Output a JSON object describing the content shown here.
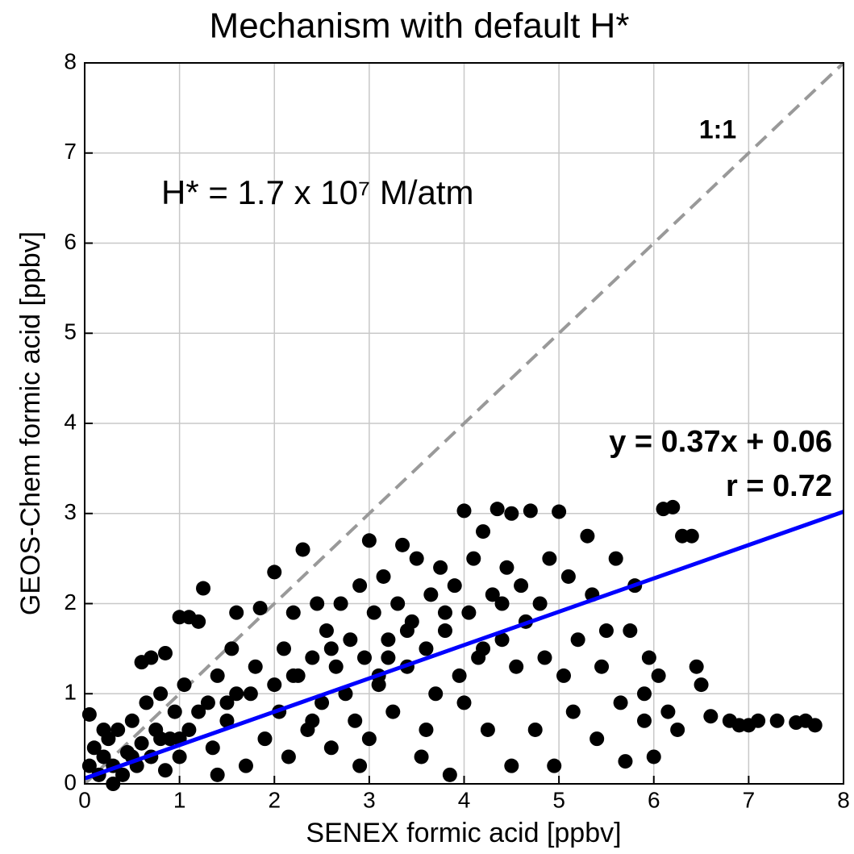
{
  "chart_data": {
    "type": "scatter",
    "title": "Mechanism with default H*",
    "x_label": "SENEX formic acid [ppbv]",
    "y_label": "GEOS-Chem formic acid [ppbv]",
    "annotation": "H* = 1.7 x 10⁷ M/atm",
    "xlim": [
      0,
      8
    ],
    "ylim": [
      0,
      8
    ],
    "xticks": [
      0,
      1,
      2,
      3,
      4,
      5,
      6,
      7,
      8
    ],
    "yticks": [
      0,
      1,
      2,
      3,
      4,
      5,
      6,
      7,
      8
    ],
    "grid": true,
    "reference_line": {
      "label": "1:1",
      "color": "#999999"
    },
    "fit": {
      "slope": 0.37,
      "intercept": 0.06,
      "label": "y = 0.37x + 0.06",
      "r_label": "r = 0.72",
      "color": "#0000ff"
    },
    "series": [
      {
        "color": "#000000",
        "x": [
          0.05,
          0.1,
          0.15,
          0.2,
          0.05,
          0.25,
          0.3,
          0.35,
          0.4,
          0.45,
          0.5,
          0.55,
          0.6,
          0.65,
          0.7,
          0.75,
          0.8,
          0.85,
          0.9,
          0.95,
          1.0,
          1.05,
          1.1,
          0.6,
          0.7,
          0.85,
          1.0,
          1.1,
          1.2,
          1.25,
          1.3,
          1.35,
          1.4,
          1.5,
          1.55,
          1.6,
          1.7,
          1.75,
          1.8,
          1.85,
          1.9,
          2.0,
          2.0,
          2.05,
          2.1,
          2.15,
          2.2,
          2.25,
          2.3,
          2.35,
          2.4,
          2.45,
          2.5,
          2.55,
          2.6,
          2.65,
          2.7,
          2.75,
          2.8,
          2.85,
          2.9,
          2.95,
          3.0,
          3.0,
          3.05,
          3.1,
          3.15,
          3.2,
          3.25,
          3.3,
          3.35,
          3.4,
          3.45,
          3.5,
          3.55,
          3.6,
          3.65,
          3.7,
          3.75,
          3.8,
          3.85,
          3.9,
          3.95,
          4.0,
          4.05,
          4.1,
          4.15,
          4.2,
          4.25,
          4.3,
          4.35,
          4.4,
          4.45,
          4.5,
          4.5,
          4.55,
          4.6,
          4.65,
          4.7,
          4.75,
          4.8,
          4.85,
          4.9,
          4.95,
          5.0,
          5.05,
          5.1,
          5.15,
          5.2,
          5.3,
          5.35,
          5.4,
          5.45,
          5.5,
          5.6,
          5.65,
          5.7,
          5.75,
          5.8,
          5.9,
          5.95,
          6.0,
          6.05,
          6.1,
          6.15,
          6.2,
          6.25,
          6.3,
          6.4,
          6.45,
          6.5,
          6.6,
          6.8,
          6.9,
          7.0,
          7.1,
          7.3,
          7.5,
          7.6,
          7.7,
          5.9,
          4.0,
          3.6,
          2.9,
          1.4,
          0.3,
          0.2,
          0.5,
          0.8,
          1.2,
          1.6,
          2.2,
          2.6,
          3.2,
          3.4,
          3.8,
          4.2,
          4.4,
          1.0,
          1.5,
          2.4,
          3.1
        ],
        "y": [
          0.2,
          0.4,
          0.1,
          0.3,
          0.77,
          0.5,
          0.2,
          0.6,
          0.1,
          0.35,
          0.7,
          0.2,
          0.45,
          0.9,
          0.3,
          0.6,
          1.0,
          0.15,
          0.5,
          0.8,
          0.3,
          1.1,
          0.6,
          1.35,
          1.4,
          1.45,
          1.85,
          1.85,
          1.8,
          2.17,
          0.9,
          0.4,
          1.2,
          0.7,
          1.5,
          1.9,
          0.2,
          1.0,
          1.3,
          1.95,
          0.5,
          2.35,
          1.1,
          0.8,
          1.5,
          0.3,
          1.9,
          1.2,
          2.6,
          0.6,
          1.4,
          2.0,
          0.9,
          1.7,
          0.4,
          1.3,
          2.0,
          1.0,
          1.6,
          0.7,
          2.2,
          1.4,
          2.7,
          0.5,
          1.9,
          1.1,
          2.3,
          1.6,
          0.8,
          2.0,
          2.65,
          1.3,
          1.8,
          2.5,
          0.3,
          1.5,
          2.1,
          1.0,
          2.4,
          1.7,
          0.1,
          2.2,
          1.2,
          3.03,
          1.9,
          2.5,
          1.4,
          2.8,
          0.6,
          2.1,
          3.05,
          1.6,
          2.4,
          0.2,
          3.0,
          1.3,
          2.2,
          1.8,
          3.03,
          0.6,
          2.0,
          1.4,
          2.5,
          0.2,
          3.02,
          1.2,
          2.3,
          0.8,
          1.6,
          2.75,
          2.1,
          0.5,
          1.3,
          1.7,
          2.5,
          0.9,
          0.25,
          1.7,
          2.2,
          0.7,
          1.4,
          0.3,
          1.2,
          3.05,
          0.8,
          3.07,
          0.6,
          2.75,
          2.75,
          1.3,
          1.1,
          0.75,
          0.7,
          0.65,
          0.65,
          0.7,
          0.7,
          0.68,
          0.7,
          0.65,
          1.0,
          0.9,
          0.6,
          0.2,
          0.1,
          0.0,
          0.6,
          0.3,
          0.5,
          0.8,
          1.0,
          1.2,
          1.5,
          1.4,
          1.7,
          1.9,
          1.5,
          2.0,
          0.5,
          0.9,
          0.7,
          1.2
        ]
      }
    ]
  }
}
